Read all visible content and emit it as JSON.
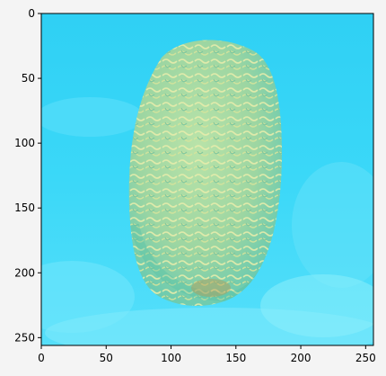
{
  "figure": {
    "axes": {
      "x_ticks": [
        "0",
        "50",
        "100",
        "150",
        "200",
        "250"
      ],
      "y_ticks": [
        "0",
        "50",
        "100",
        "150",
        "200",
        "250"
      ],
      "xlim": [
        0,
        256
      ],
      "ylim": [
        256,
        0
      ]
    },
    "image": {
      "subject": "brain coral underwater",
      "colors": {
        "water": "#32d2f4",
        "water_light": "#62e4fb",
        "coral_base": "#9fd8a6",
        "coral_groove": "#d8e7a2",
        "coral_shadow": "#4fbfa5"
      }
    }
  }
}
